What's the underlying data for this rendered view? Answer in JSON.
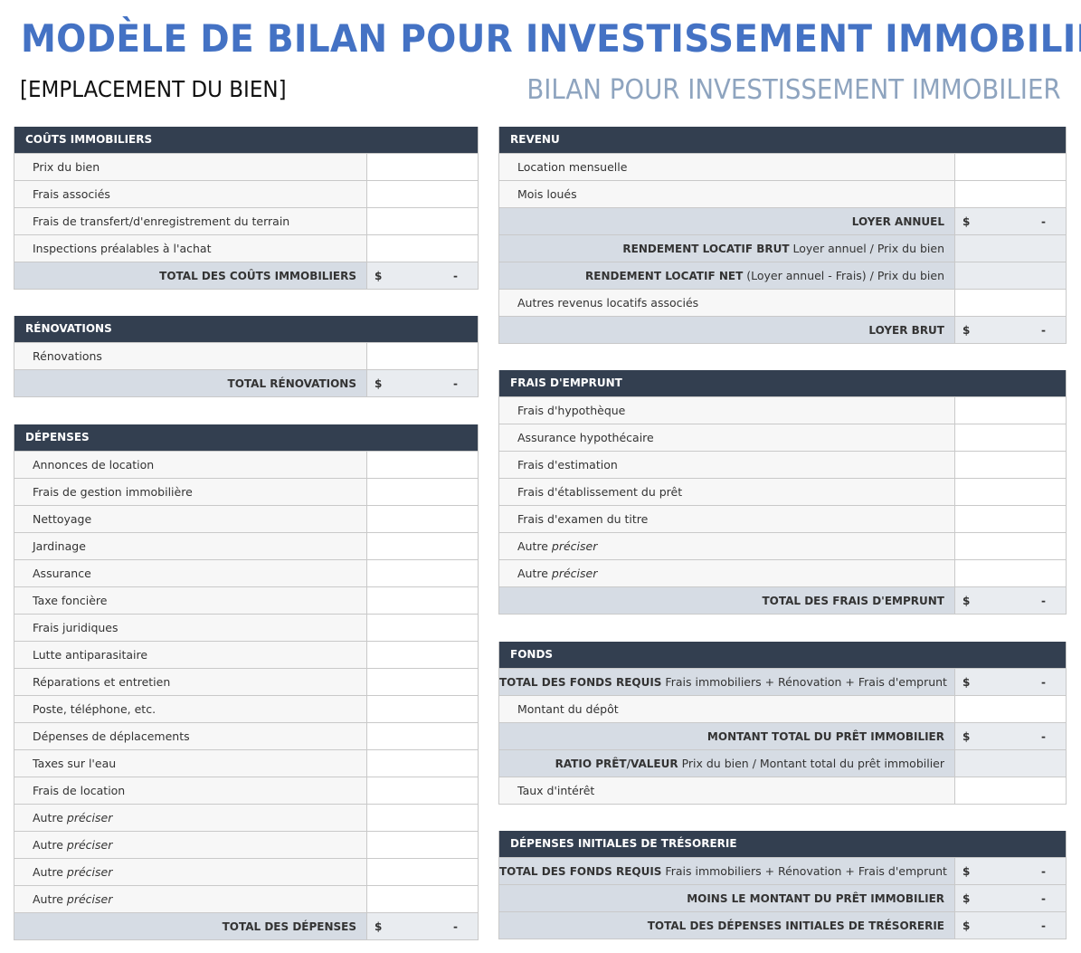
{
  "header": {
    "title": "MODÈLE DE BILAN POUR INVESTISSEMENT IMMOBILIER",
    "location": "[EMPLACEMENT DU BIEN]",
    "subtitle": "BILAN POUR INVESTISSEMENT IMMOBILIER"
  },
  "colors": {
    "title": "#4472c4",
    "section_header": "#333f50",
    "total_row": "#d6dce4",
    "total_value": "#e9ecf0",
    "label_cell": "#f7f7f7"
  },
  "left": [
    {
      "title": "COÛTS IMMOBILIERS",
      "rows": [
        {
          "type": "input",
          "label": "Prix du bien"
        },
        {
          "type": "input",
          "label": "Frais associés"
        },
        {
          "type": "input",
          "label": "Frais de transfert/d'enregistrement du terrain"
        },
        {
          "type": "input",
          "label": "Inspections préalables à l'achat"
        },
        {
          "type": "total",
          "bold": "TOTAL DES COÛTS IMMOBILIERS",
          "currency": "$",
          "value": "-"
        }
      ]
    },
    {
      "title": "RÉNOVATIONS",
      "rows": [
        {
          "type": "input",
          "label": "Rénovations"
        },
        {
          "type": "total",
          "bold": "TOTAL RÉNOVATIONS",
          "currency": "$",
          "value": "-"
        }
      ]
    },
    {
      "title": "DÉPENSES",
      "rows": [
        {
          "type": "input",
          "label": "Annonces de location"
        },
        {
          "type": "input",
          "label": "Frais de gestion immobilière"
        },
        {
          "type": "input",
          "label": "Nettoyage"
        },
        {
          "type": "input",
          "label": "Jardinage"
        },
        {
          "type": "input",
          "label": "Assurance"
        },
        {
          "type": "input",
          "label": "Taxe foncière"
        },
        {
          "type": "input",
          "label": "Frais juridiques"
        },
        {
          "type": "input",
          "label": "Lutte antiparasitaire"
        },
        {
          "type": "input",
          "label": "Réparations et entretien"
        },
        {
          "type": "input",
          "label": "Poste, téléphone, etc."
        },
        {
          "type": "input",
          "label": "Dépenses de déplacements"
        },
        {
          "type": "input",
          "label": "Taxes sur l'eau"
        },
        {
          "type": "input",
          "label": "Frais de location"
        },
        {
          "type": "input",
          "label": "Autre ",
          "italic": "préciser"
        },
        {
          "type": "input",
          "label": "Autre ",
          "italic": "préciser"
        },
        {
          "type": "input",
          "label": "Autre ",
          "italic": "préciser"
        },
        {
          "type": "input",
          "label": "Autre ",
          "italic": "préciser"
        },
        {
          "type": "total",
          "bold": "TOTAL DES DÉPENSES",
          "currency": "$",
          "value": "-"
        }
      ]
    }
  ],
  "right": [
    {
      "title": "REVENU",
      "rows": [
        {
          "type": "input",
          "label": "Location mensuelle"
        },
        {
          "type": "input",
          "label": "Mois loués"
        },
        {
          "type": "total",
          "bold": "LOYER ANNUEL",
          "currency": "$",
          "value": "-"
        },
        {
          "type": "calc",
          "bold": "RENDEMENT LOCATIF BRUT",
          "label": " Loyer annuel / Prix du bien"
        },
        {
          "type": "calc",
          "bold": "RENDEMENT LOCATIF NET",
          "label": " (Loyer annuel - Frais) / Prix du bien"
        },
        {
          "type": "input",
          "label": "Autres revenus locatifs associés"
        },
        {
          "type": "total",
          "bold": "LOYER BRUT",
          "currency": "$",
          "value": "-"
        }
      ]
    },
    {
      "title": "FRAIS D'EMPRUNT",
      "rows": [
        {
          "type": "input",
          "label": "Frais d'hypothèque"
        },
        {
          "type": "input",
          "label": "Assurance hypothécaire"
        },
        {
          "type": "input",
          "label": "Frais d'estimation"
        },
        {
          "type": "input",
          "label": "Frais d'établissement du prêt"
        },
        {
          "type": "input",
          "label": "Frais d'examen du titre"
        },
        {
          "type": "input",
          "label": "Autre ",
          "italic": "préciser"
        },
        {
          "type": "input",
          "label": "Autre ",
          "italic": "préciser"
        },
        {
          "type": "total",
          "bold": "TOTAL DES FRAIS D'EMPRUNT",
          "currency": "$",
          "value": "-"
        }
      ]
    },
    {
      "title": "FONDS",
      "rows": [
        {
          "type": "calc",
          "bold": "TOTAL DES FONDS REQUIS",
          "label": " Frais immobiliers + Rénovation + Frais d'emprunt",
          "currency": "$",
          "value": "-"
        },
        {
          "type": "input",
          "label": "Montant du dépôt"
        },
        {
          "type": "total",
          "bold": "MONTANT TOTAL DU PRÊT IMMOBILIER",
          "currency": "$",
          "value": "-"
        },
        {
          "type": "calc",
          "bold": "RATIO PRÊT/VALEUR",
          "label": " Prix du bien / Montant total du prêt immobilier"
        },
        {
          "type": "input",
          "label": "Taux d'intérêt"
        }
      ]
    },
    {
      "title": "DÉPENSES INITIALES DE TRÉSORERIE",
      "rows": [
        {
          "type": "calc",
          "bold": "TOTAL DES FONDS REQUIS",
          "label": " Frais immobiliers + Rénovation + Frais d'emprunt",
          "currency": "$",
          "value": "-"
        },
        {
          "type": "total",
          "bold": "MOINS LE MONTANT DU PRÊT IMMOBILIER",
          "currency": "$",
          "value": "-"
        },
        {
          "type": "total",
          "bold": "TOTAL DES DÉPENSES INITIALES DE TRÉSORERIE",
          "currency": "$",
          "value": "-"
        }
      ]
    }
  ]
}
